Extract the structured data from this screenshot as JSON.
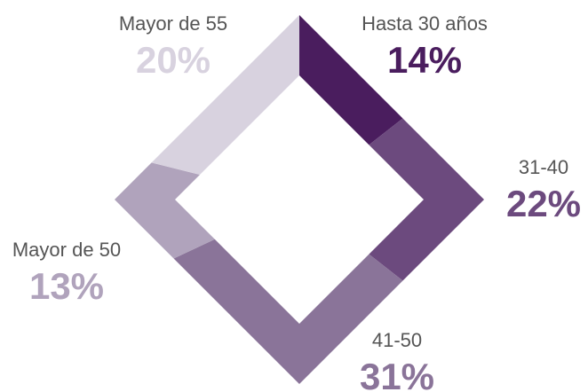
{
  "chart_data": {
    "type": "diamond-donut",
    "categories": [
      "Hasta 30 años",
      "31-40",
      "41-50",
      "Mayor de 50",
      "Mayor de 55"
    ],
    "values": [
      14,
      22,
      31,
      13,
      20
    ],
    "value_labels": [
      "14%",
      "22%",
      "31%",
      "13%",
      "20%"
    ],
    "colors": [
      "#4a1d5e",
      "#6c4a7e",
      "#8a7499",
      "#b0a3bc",
      "#d8d2df"
    ]
  }
}
